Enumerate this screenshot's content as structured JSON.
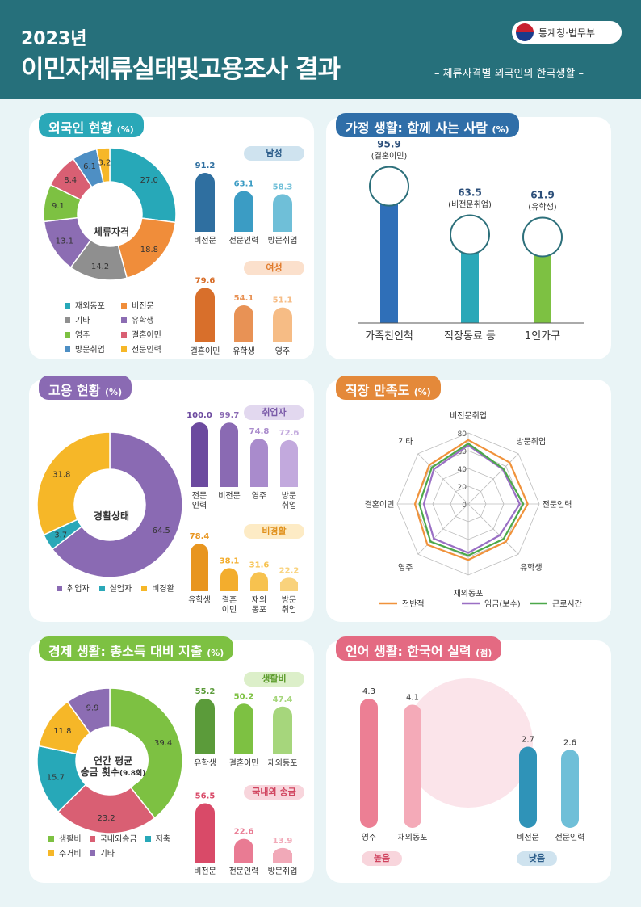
{
  "header": {
    "year": "2023년",
    "title": "이민자체류실태및고용조사 결과",
    "subtitle": "– 체류자격별 외국인의 한국생활 –",
    "logo_text": "통계청·법무부"
  },
  "panel1": {
    "title": "외국인 현황",
    "unit": "(%)",
    "center": "체류자격",
    "male": "남성",
    "female": "여성",
    "legend": [
      {
        "label": "재외동포",
        "color": "#27a8b8"
      },
      {
        "label": "비전문",
        "color": "#f08d3a"
      },
      {
        "label": "기타",
        "color": "#8f8f8f"
      },
      {
        "label": "유학생",
        "color": "#8c6db3"
      },
      {
        "label": "영주",
        "color": "#7dc142"
      },
      {
        "label": "결혼이민",
        "color": "#d95f73"
      },
      {
        "label": "방문취업",
        "color": "#4e8fc4"
      },
      {
        "label": "전문인력",
        "color": "#f6b728"
      }
    ]
  },
  "panel2": {
    "title": "가정 생활: 함께 사는 사람",
    "unit": "(%)"
  },
  "panel3": {
    "title": "고용 현황",
    "unit": "(%)",
    "center": "경활상태",
    "employed": "취업자",
    "inactive": "비경활",
    "legend": [
      {
        "label": "취업자",
        "color": "#8a6ab3"
      },
      {
        "label": "실업자",
        "color": "#2aa8b8"
      },
      {
        "label": "비경활",
        "color": "#f6b728"
      }
    ]
  },
  "panel4": {
    "title": "직장 만족도",
    "unit": "(%)"
  },
  "panel5": {
    "title": "경제 생활: 총소득 대비 지출",
    "unit": "(%)",
    "center1": "연간 평균",
    "center2": "송금 횟수",
    "center3": "(9.8회)",
    "living": "생활비",
    "remit": "국내외 송금",
    "legend": [
      {
        "label": "생활비",
        "color": "#7dc142"
      },
      {
        "label": "국내외송금",
        "color": "#d95f73"
      },
      {
        "label": "저축",
        "color": "#27a8b8"
      },
      {
        "label": "주거비",
        "color": "#f6b728"
      },
      {
        "label": "기타",
        "color": "#8c6db3"
      }
    ]
  },
  "panel6": {
    "title": "언어 생활: 한국어 실력",
    "unit": "(점)",
    "high": "높음",
    "low": "낮음"
  },
  "chart_data": [
    {
      "type": "pie",
      "title": "외국인 현황",
      "categories": [
        "재외동포",
        "비전문",
        "기타",
        "유학생",
        "영주",
        "결혼이민",
        "방문취업",
        "전문인력"
      ],
      "values": [
        27.0,
        18.8,
        14.2,
        13.1,
        9.1,
        8.4,
        6.1,
        3.2
      ]
    },
    {
      "type": "bar",
      "title": "남성",
      "categories": [
        "비전문",
        "전문인력",
        "방문취업"
      ],
      "values": [
        91.2,
        63.1,
        58.3
      ]
    },
    {
      "type": "bar",
      "title": "여성",
      "categories": [
        "결혼이민",
        "유학생",
        "영주"
      ],
      "values": [
        79.6,
        54.1,
        51.1
      ]
    },
    {
      "type": "bar",
      "title": "가정 생활: 함께 사는 사람",
      "categories": [
        "가족친인척",
        "직장동료 등",
        "1인가구"
      ],
      "values": [
        95.9,
        63.5,
        61.9
      ],
      "sublabels": [
        "(결혼이민)",
        "(비전문취업)",
        "(유학생)"
      ]
    },
    {
      "type": "pie",
      "title": "경활상태",
      "categories": [
        "취업자",
        "실업자",
        "비경활"
      ],
      "values": [
        64.5,
        3.7,
        31.8
      ]
    },
    {
      "type": "bar",
      "title": "취업자",
      "categories": [
        "전문\n인력",
        "비전문",
        "영주",
        "방문\n취업"
      ],
      "values": [
        100.0,
        99.7,
        74.8,
        72.6
      ]
    },
    {
      "type": "bar",
      "title": "비경활자",
      "categories": [
        "유학생",
        "결혼\n이민",
        "재외\n동포",
        "방문\n취업"
      ],
      "values": [
        78.4,
        38.1,
        31.6,
        22.2
      ]
    },
    {
      "type": "radar",
      "title": "직장 만족도",
      "categories": [
        "비전문취업",
        "방문취업",
        "전문인력",
        "유학생",
        "재외동포",
        "영주",
        "결혼이민",
        "기타"
      ],
      "ylim": [
        0,
        80
      ],
      "ticks": [
        0,
        20,
        40,
        60,
        80
      ],
      "series": [
        {
          "name": "전반적",
          "color": "#f0923b",
          "values": [
            72,
            66,
            67,
            60,
            63,
            65,
            60,
            62
          ]
        },
        {
          "name": "임금(보수)",
          "color": "#9a6fc4",
          "values": [
            66,
            55,
            58,
            50,
            55,
            55,
            50,
            55
          ]
        },
        {
          "name": "근로시간",
          "color": "#4ca84a",
          "values": [
            68,
            56,
            62,
            56,
            58,
            60,
            55,
            58
          ]
        }
      ]
    },
    {
      "type": "pie",
      "title": "총소득 대비 지출",
      "categories": [
        "생활비",
        "국내외송금",
        "저축",
        "주거비",
        "기타"
      ],
      "values": [
        39.4,
        23.2,
        15.7,
        11.8,
        9.9
      ]
    },
    {
      "type": "bar",
      "title": "생활비",
      "categories": [
        "유학생",
        "결혼이민",
        "재외동포"
      ],
      "values": [
        55.2,
        50.2,
        47.4
      ]
    },
    {
      "type": "bar",
      "title": "국내외 송금",
      "categories": [
        "비전문",
        "전문인력",
        "방문취업"
      ],
      "values": [
        56.5,
        22.6,
        13.9
      ]
    },
    {
      "type": "bar",
      "title": "한국어 실력",
      "categories": [
        "영주",
        "재외동포",
        "비전문",
        "전문인력"
      ],
      "values": [
        4.3,
        4.1,
        2.7,
        2.6
      ]
    }
  ]
}
